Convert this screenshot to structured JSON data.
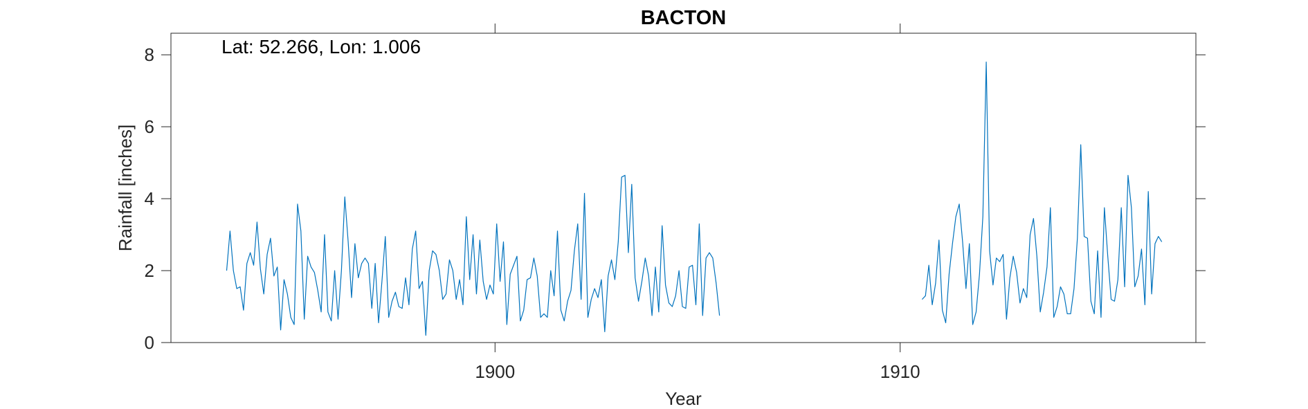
{
  "chart_data": {
    "type": "line",
    "title": "BACTON",
    "xlabel": "Year",
    "ylabel": "Rainfall [inches]",
    "annotation": "Lat: 52.266, Lon: 1.006",
    "xlim": [
      1892,
      1917.3
    ],
    "ylim": [
      0,
      8.6
    ],
    "xticks": [
      1900,
      1910
    ],
    "xtick_labels": [
      "1900",
      "1910"
    ],
    "yticks": [
      0,
      2,
      4,
      6,
      8
    ],
    "ytick_labels": [
      "0",
      "2",
      "4",
      "6",
      "8"
    ],
    "grid": false,
    "line_color": "#0072BD",
    "series": [
      {
        "segments": [
          {
            "start_year": 1893.375,
            "step": 0.08333,
            "values": [
              2.0,
              3.1,
              2.0,
              1.5,
              1.55,
              0.9,
              2.2,
              2.5,
              2.15,
              3.35,
              2.05,
              1.35,
              2.45,
              2.9,
              1.85,
              2.1,
              0.35,
              1.75,
              1.35,
              0.7,
              0.5,
              3.85,
              3.1,
              0.65,
              2.4,
              2.1,
              1.95,
              1.45,
              0.85,
              3.0,
              0.85,
              0.6,
              2.0,
              0.65,
              2.0,
              4.05,
              2.8,
              1.25,
              2.75,
              1.8,
              2.2,
              2.35,
              2.2,
              0.95,
              2.2,
              0.55,
              1.7,
              2.95,
              0.7,
              1.15,
              1.4,
              1.0,
              0.95,
              1.8,
              1.05,
              2.6,
              3.1,
              1.5,
              1.7,
              0.2,
              2.0,
              2.55,
              2.45,
              2.0,
              1.2,
              1.35,
              2.3,
              2.0,
              1.2,
              1.75,
              1.05,
              3.5,
              1.75,
              3.0,
              1.35,
              2.85,
              1.7,
              1.2,
              1.6,
              1.35,
              3.3,
              1.7,
              2.8,
              0.5,
              1.9,
              2.15,
              2.4,
              0.6,
              0.9,
              1.75,
              1.8,
              2.35,
              1.85,
              0.7,
              0.8,
              0.7,
              2.0,
              1.3,
              3.1,
              0.9,
              0.6,
              1.15,
              1.45,
              2.55,
              3.3,
              1.2,
              4.15,
              0.7,
              1.2,
              1.5,
              1.25,
              1.75,
              0.3,
              1.85,
              2.3,
              1.75,
              2.8,
              4.6,
              4.65,
              2.5,
              4.4,
              1.8,
              1.15,
              1.7,
              2.35,
              1.85,
              0.75,
              2.1,
              0.85,
              3.25,
              1.6,
              1.1,
              1.0,
              1.3,
              2.0,
              1.0,
              0.95,
              2.1,
              2.15,
              1.05,
              3.3,
              0.75,
              2.35,
              2.5,
              2.35,
              1.65,
              0.75
            ]
          },
          {
            "start_year": 1910.5417,
            "step": 0.08333,
            "values": [
              1.2,
              1.3,
              2.15,
              1.05,
              1.65,
              2.85,
              0.9,
              0.55,
              1.9,
              2.75,
              3.5,
              3.85,
              2.8,
              1.5,
              2.75,
              0.5,
              0.85,
              1.9,
              3.5,
              7.8,
              2.55,
              1.6,
              2.35,
              2.25,
              2.45,
              0.65,
              1.8,
              2.4,
              1.95,
              1.1,
              1.5,
              1.25,
              3.0,
              3.45,
              2.4,
              0.85,
              1.4,
              2.1,
              3.75,
              0.7,
              1.0,
              1.55,
              1.35,
              0.8,
              0.8,
              1.5,
              2.9,
              5.5,
              2.95,
              2.9,
              1.15,
              0.8,
              2.55,
              0.7,
              3.75,
              2.4,
              1.2,
              1.15,
              1.75,
              3.75,
              1.55,
              4.65,
              3.75,
              1.55,
              1.85,
              2.6,
              1.05,
              4.2,
              1.35,
              2.75,
              2.95,
              2.8
            ]
          }
        ]
      }
    ]
  }
}
